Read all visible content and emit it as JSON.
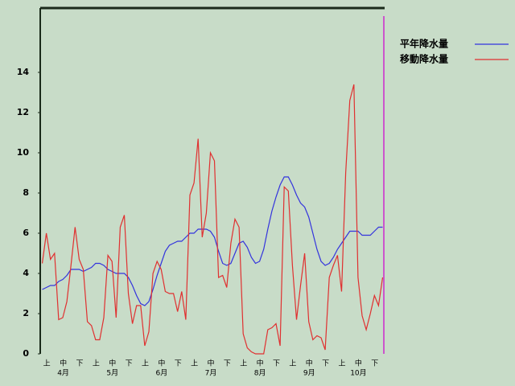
{
  "chart_data": {
    "type": "line",
    "categories": [
      null,
      "上",
      null,
      null,
      null,
      "中",
      null,
      null,
      null,
      "下",
      null,
      null,
      null,
      "上",
      null,
      null,
      null,
      "中",
      null,
      null,
      null,
      "下",
      null,
      null,
      null,
      "上",
      null,
      null,
      null,
      "中",
      null,
      null,
      null,
      "下",
      null,
      null,
      null,
      "上",
      null,
      null,
      null,
      "中",
      null,
      null,
      null,
      "下",
      null,
      null,
      null,
      "上",
      null,
      null,
      null,
      "中",
      null,
      null,
      null,
      "下",
      null,
      null,
      null,
      "上",
      null,
      null,
      null,
      "中",
      null,
      null,
      null,
      "下",
      null,
      null,
      null,
      "上",
      null,
      null,
      null,
      "中",
      null,
      null,
      null,
      "下",
      null,
      null
    ],
    "months": [
      "4月",
      "5月",
      "6月",
      "7月",
      "8月",
      "9月",
      "10月"
    ],
    "series": [
      {
        "name": "平年降水量",
        "color": "#3333dd",
        "values": [
          3.2,
          3.3,
          3.4,
          3.4,
          3.6,
          3.7,
          3.9,
          4.2,
          4.2,
          4.2,
          4.1,
          4.2,
          4.3,
          4.5,
          4.5,
          4.4,
          4.2,
          4.1,
          4.0,
          4.0,
          4.0,
          3.8,
          3.4,
          2.9,
          2.5,
          2.4,
          2.6,
          3.2,
          3.9,
          4.5,
          5.1,
          5.4,
          5.5,
          5.6,
          5.6,
          5.8,
          6.0,
          6.0,
          6.2,
          6.2,
          6.2,
          6.1,
          5.8,
          5.1,
          4.5,
          4.4,
          4.5,
          5.0,
          5.5,
          5.6,
          5.3,
          4.8,
          4.5,
          4.6,
          5.2,
          6.2,
          7.1,
          7.8,
          8.4,
          8.8,
          8.8,
          8.4,
          7.9,
          7.5,
          7.3,
          6.8,
          6.0,
          5.2,
          4.6,
          4.4,
          4.5,
          4.8,
          5.2,
          5.5,
          5.8,
          6.1,
          6.1,
          6.1,
          5.9,
          5.9,
          5.9,
          6.1,
          6.3,
          6.3
        ]
      },
      {
        "name": "移動降水量",
        "color": "#e03030",
        "values": [
          4.5,
          6,
          4.7,
          5,
          1.7,
          1.8,
          2.6,
          4.4,
          6.3,
          4.7,
          4.2,
          1.6,
          1.4,
          0.7,
          0.7,
          1.8,
          4.9,
          4.6,
          1.8,
          6.3,
          6.9,
          3.0,
          1.5,
          2.4,
          2.4,
          0.4,
          1.1,
          4.0,
          4.6,
          4.2,
          3.1,
          3.0,
          3.0,
          2.1,
          3.1,
          1.7,
          7.9,
          8.5,
          10.7,
          5.8,
          7.0,
          10.0,
          9.6,
          3.8,
          3.9,
          3.3,
          5.5,
          6.7,
          6.3,
          1.0,
          0.3,
          0.1,
          0,
          0,
          0,
          1.2,
          1.3,
          1.5,
          0.4,
          8.3,
          8.1,
          4.4,
          1.7,
          3.4,
          5.0,
          1.6,
          0.7,
          0.9,
          0.8,
          0.2,
          3.8,
          4.4,
          4.9,
          3.1,
          9.0,
          12.6,
          13.4,
          3.8,
          1.9,
          1.2,
          2.0,
          2.9,
          2.4,
          3.8
        ]
      }
    ],
    "ylim": [
      0,
      17.2
    ],
    "yticks": [
      0,
      2,
      4,
      6,
      8,
      10,
      12,
      14
    ],
    "grid": false,
    "legend": "right"
  }
}
